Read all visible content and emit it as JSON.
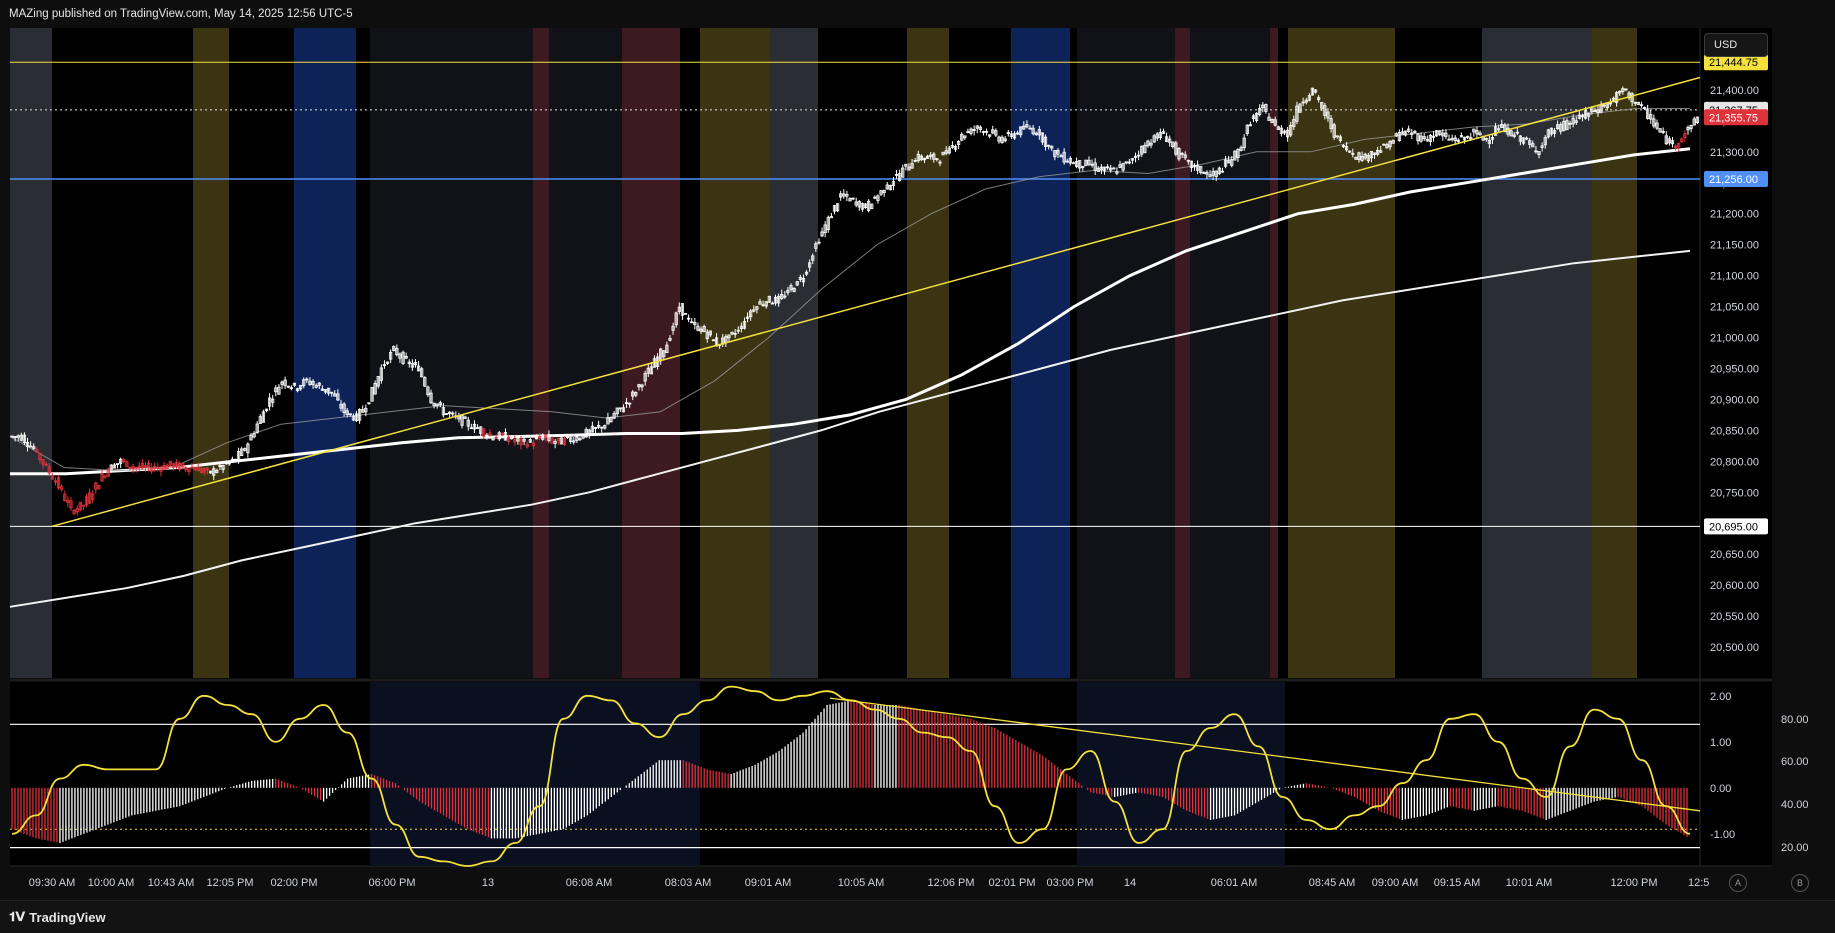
{
  "header": {
    "published_text": "MAZing published on TradingView.com, May 14, 2025 12:56 UTC-5"
  },
  "footer": {
    "brand_label": "TradingView",
    "brand_icon": "tradingview-logo-icon"
  },
  "toolbar": {
    "currency_label": "USD",
    "auto_scale_label": "A",
    "b_label": "B"
  },
  "colors": {
    "background": "#000000",
    "candle": "#ffffff",
    "candle_down": "#e0323a",
    "trendline": "#f5e03c",
    "support_blue": "#4f8ff7",
    "session_yellow": "#3a3412",
    "session_blue": "#0d2357",
    "session_red": "#3d1a22",
    "session_grey": "#2a2d33",
    "histogram_up": "#ffffff",
    "histogram_down": "#e0323a",
    "oscillator": "#f5e03c"
  },
  "chart_data": [
    {
      "type": "line",
      "panel": "price",
      "ylim": [
        20450,
        21500
      ],
      "y_ticks": [
        "21,400.00",
        "21,350.00",
        "21,300.00",
        "21,250.00",
        "21,200.00",
        "21,150.00",
        "21,100.00",
        "21,050.00",
        "21,000.00",
        "20,950.00",
        "20,900.00",
        "20,850.00",
        "20,800.00",
        "20,750.00",
        "20,700.00",
        "20,650.00",
        "20,600.00",
        "20,550.00",
        "20,500.00"
      ],
      "y_tick_values": [
        21400,
        21350,
        21300,
        21250,
        21200,
        21150,
        21100,
        21050,
        21000,
        20950,
        20900,
        20850,
        20800,
        20750,
        20700,
        20650,
        20600,
        20550,
        20500
      ],
      "x_ticks": [
        "09:30 AM",
        "10:00 AM",
        "10:43 AM",
        "12:05 PM",
        "02:00 PM",
        "06:00 PM",
        "13",
        "06:08 AM",
        "08:03 AM",
        "09:01 AM",
        "10:05 AM",
        "12:06 PM",
        "02:01 PM",
        "03:00 PM",
        "14",
        "06:01 AM",
        "08:45 AM",
        "09:00 AM",
        "09:15 AM",
        "10:01 AM",
        "12:00 PM",
        "12:5"
      ],
      "price_closes": [
        20840,
        20820,
        20790,
        20760,
        20720,
        20730,
        20760,
        20790,
        20800,
        20790,
        20790,
        20790,
        20795,
        20790,
        20790,
        20780,
        20790,
        20800,
        20820,
        20860,
        20900,
        20930,
        20920,
        20930,
        20920,
        20910,
        20880,
        20870,
        20900,
        20950,
        20980,
        20960,
        20950,
        20900,
        20880,
        20870,
        20860,
        20850,
        20840,
        20840,
        20830,
        20830,
        20840,
        20830,
        20835,
        20840,
        20850,
        20860,
        20880,
        20900,
        20930,
        20960,
        20990,
        21050,
        21020,
        21010,
        20990,
        21000,
        21020,
        21050,
        21060,
        21060,
        21080,
        21100,
        21150,
        21190,
        21230,
        21220,
        21210,
        21230,
        21250,
        21270,
        21290,
        21290,
        21290,
        21310,
        21330,
        21340,
        21330,
        21320,
        21330,
        21340,
        21330,
        21300,
        21290,
        21280,
        21280,
        21270,
        21270,
        21280,
        21300,
        21320,
        21330,
        21300,
        21280,
        21270,
        21260,
        21280,
        21300,
        21350,
        21370,
        21340,
        21330,
        21380,
        21400,
        21360,
        21320,
        21300,
        21290,
        21300,
        21310,
        21330,
        21330,
        21320,
        21330,
        21320,
        21320,
        21330,
        21320,
        21340,
        21330,
        21320,
        21300,
        21330,
        21340,
        21350,
        21360,
        21370,
        21380,
        21400,
        21380,
        21360,
        21330,
        21310,
        21330,
        21355
      ],
      "horizontal_levels": [
        {
          "value": 21444.75,
          "label": "21,444.75",
          "color": "#f5e03c"
        },
        {
          "value": 21367.75,
          "label": "21,367.75",
          "color": "#e6e6e6"
        },
        {
          "value": 21355.75,
          "label": "21,355.75",
          "color": "#e0323a"
        },
        {
          "value": 21256.0,
          "label": "21,256.00",
          "color": "#4f8ff7"
        },
        {
          "value": 20695.0,
          "label": "20,695.00",
          "color": "#ffffff"
        }
      ],
      "moving_averages": [
        {
          "style": "thick-white",
          "values": [
            20780,
            20780,
            20785,
            20790,
            20800,
            20810,
            20820,
            20830,
            20838,
            20840,
            20842,
            20845,
            20845,
            20850,
            20860,
            20875,
            20900,
            20940,
            20990,
            21050,
            21100,
            21140,
            21170,
            21200,
            21215,
            21235,
            21250,
            21265,
            21280,
            21295,
            21305
          ]
        },
        {
          "style": "slow-white",
          "values": [
            20565,
            20580,
            20595,
            20615,
            20640,
            20660,
            20680,
            20700,
            20715,
            20730,
            20750,
            20775,
            20800,
            20825,
            20850,
            20880,
            20905,
            20930,
            20955,
            20980,
            21000,
            21020,
            21040,
            21060,
            21075,
            21090,
            21105,
            21120,
            21130,
            21140
          ]
        },
        {
          "style": "thin-grey",
          "values": [
            20840,
            20790,
            20785,
            20790,
            20830,
            20860,
            20870,
            20880,
            20890,
            20885,
            20880,
            20870,
            20880,
            20930,
            21000,
            21080,
            21150,
            21200,
            21240,
            21260,
            21270,
            21265,
            21280,
            21300,
            21300,
            21320,
            21330,
            21340,
            21345,
            21360,
            21370,
            21370
          ]
        }
      ]
    },
    {
      "type": "line",
      "panel": "oscillator",
      "ylim": [
        -1.7,
        2.3
      ],
      "y_ticks_left": [
        "2.00",
        "1.00",
        "0.00",
        "-1.00"
      ],
      "y_tick_values_left": [
        2,
        1,
        0,
        -1
      ],
      "y_ticks_right": [
        "80.00",
        "60.00",
        "40.00",
        "20.00"
      ],
      "y_tick_values_right": [
        80,
        60,
        40,
        20
      ],
      "oscillator_values": [
        -1.0,
        -0.6,
        0.2,
        0.5,
        0.4,
        0.4,
        0.4,
        1.5,
        2.0,
        1.8,
        1.6,
        1.0,
        1.5,
        1.8,
        1.2,
        0.2,
        -0.8,
        -1.5,
        -1.6,
        -1.7,
        -1.6,
        -1.2,
        -0.4,
        1.5,
        2.0,
        1.9,
        1.4,
        1.1,
        1.6,
        1.9,
        2.2,
        2.1,
        1.9,
        2.0,
        2.1,
        1.9,
        1.7,
        1.5,
        1.2,
        1.1,
        0.8,
        -0.4,
        -1.2,
        -0.9,
        0.4,
        0.8,
        -0.3,
        -1.2,
        -0.9,
        0.8,
        1.3,
        1.6,
        0.9,
        -0.2,
        -0.7,
        -0.9,
        -0.6,
        -0.4,
        0.1,
        0.6,
        1.5,
        1.6,
        1.0,
        0.2,
        -0.2,
        0.9,
        1.7,
        1.5,
        0.6,
        -0.4,
        -1.0
      ],
      "histogram_values": [
        -0.9,
        -1.1,
        -1.2,
        -1.0,
        -0.8,
        -0.6,
        -0.5,
        -0.4,
        -0.2,
        0.0,
        0.15,
        0.2,
        0.0,
        -0.3,
        0.2,
        0.3,
        0.1,
        -0.3,
        -0.6,
        -0.9,
        -1.1,
        -1.1,
        -1.0,
        -0.9,
        -0.6,
        -0.2,
        0.2,
        0.6,
        0.6,
        0.4,
        0.3,
        0.5,
        0.8,
        1.2,
        1.8,
        1.9,
        1.8,
        1.8,
        1.7,
        1.6,
        1.5,
        1.3,
        1.0,
        0.7,
        0.3,
        -0.1,
        -0.2,
        -0.1,
        -0.2,
        -0.5,
        -0.7,
        -0.6,
        -0.3,
        0.0,
        0.1,
        0.0,
        -0.2,
        -0.5,
        -0.7,
        -0.6,
        -0.4,
        -0.5,
        -0.4,
        -0.5,
        -0.7,
        -0.5,
        -0.3,
        -0.2,
        -0.4,
        -0.8,
        -1.1
      ],
      "reference_lines": [
        1.38,
        -1.3
      ],
      "dotted_level": -0.9
    }
  ]
}
